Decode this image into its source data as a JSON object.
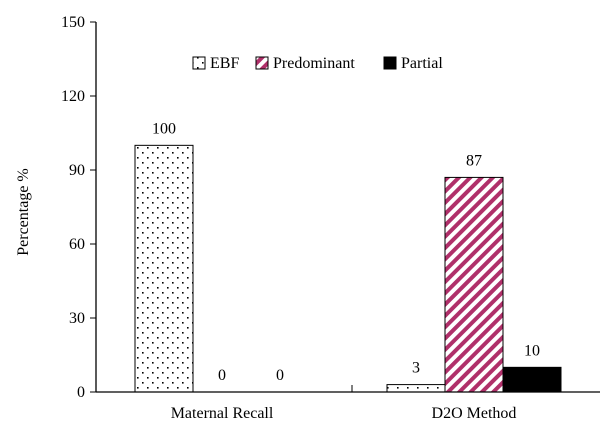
{
  "chart_data": {
    "type": "bar",
    "categories": [
      "Maternal Recall",
      "D2O Method"
    ],
    "series": [
      {
        "name": "EBF",
        "values": [
          100,
          3
        ],
        "pattern": "dots",
        "color": "#000000"
      },
      {
        "name": "Predominant",
        "values": [
          0,
          87
        ],
        "pattern": "diagonal",
        "color": "#b0306a"
      },
      {
        "name": "Partial",
        "values": [
          0,
          10
        ],
        "pattern": "solid",
        "color": "#000000"
      }
    ],
    "data_labels": [
      [
        "100",
        "0",
        "0"
      ],
      [
        "3",
        "87",
        "10"
      ]
    ],
    "ylabel": "Percentage %",
    "ylim": [
      0,
      150
    ],
    "yticks": [
      0,
      30,
      60,
      90,
      120,
      150
    ],
    "legend": "top-center",
    "grid": false
  }
}
